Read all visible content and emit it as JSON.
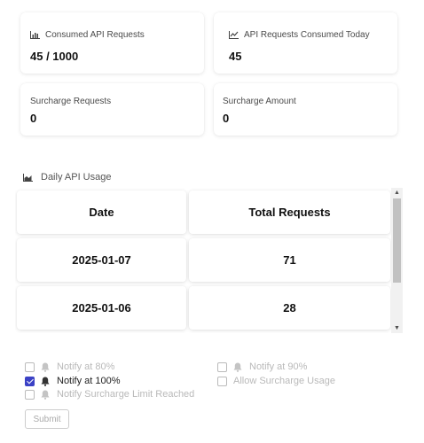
{
  "stats": [
    {
      "label": "Consumed API Requests",
      "value": "45 / 1000",
      "icon": "bar-chart-icon"
    },
    {
      "label": "API Requests Consumed Today",
      "value": "45",
      "icon": "line-chart-icon"
    },
    {
      "label": "Surcharge Requests",
      "value": "0"
    },
    {
      "label": "Surcharge Amount",
      "value": "0"
    }
  ],
  "usage": {
    "title": "Daily API Usage",
    "icon": "area-chart-icon",
    "columns": [
      "Date",
      "Total Requests"
    ],
    "rows": [
      [
        "2025-01-07",
        "71"
      ],
      [
        "2025-01-06",
        "28"
      ]
    ]
  },
  "notifications": {
    "options": [
      {
        "label": "Notify at 80%",
        "checked": false,
        "enabled": false
      },
      {
        "label": "Notify at 90%",
        "checked": false,
        "enabled": false
      },
      {
        "label": "Notify at 100%",
        "checked": true,
        "enabled": true
      },
      {
        "label": "Allow Surcharge Usage",
        "checked": false,
        "enabled": false
      },
      {
        "label": "Notify Surcharge Limit Reached",
        "checked": false,
        "enabled": false
      }
    ],
    "submit_label": "Submit"
  },
  "colors": {
    "accent": "#3b41c5",
    "disabled_text": "#b9b9b9"
  }
}
